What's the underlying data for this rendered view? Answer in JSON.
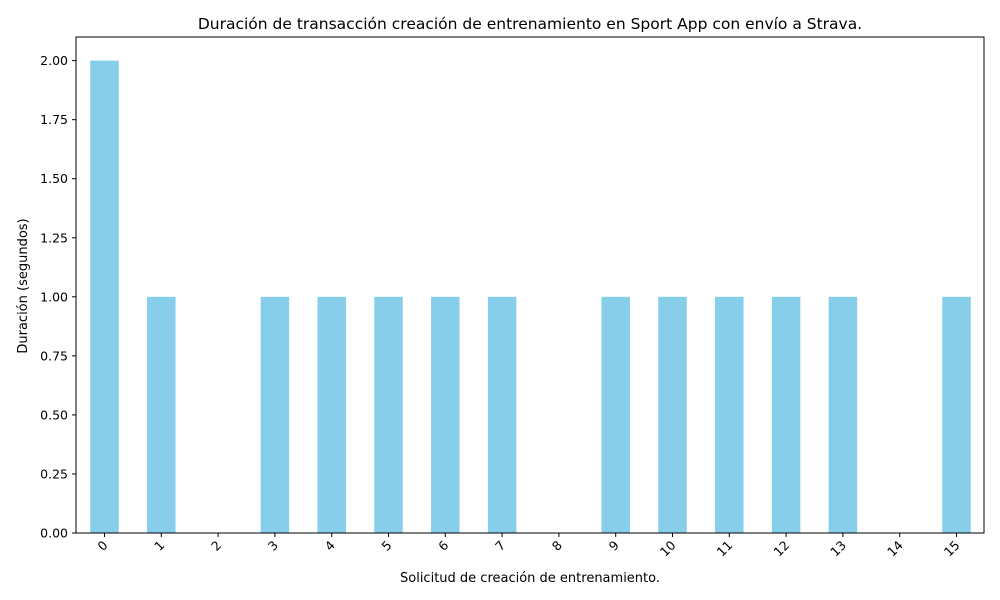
{
  "chart_data": {
    "type": "bar",
    "title": "Duración de transacción creación de entrenamiento en Sport App con envío a Strava.",
    "xlabel": "Solicitud de creación de entrenamiento.",
    "ylabel": "Duración (segundos)",
    "categories": [
      "0",
      "1",
      "2",
      "3",
      "4",
      "5",
      "6",
      "7",
      "8",
      "9",
      "10",
      "11",
      "12",
      "13",
      "14",
      "15"
    ],
    "values": [
      2,
      1,
      0,
      1,
      1,
      1,
      1,
      1,
      0,
      1,
      1,
      1,
      1,
      1,
      0,
      1
    ],
    "ylim": [
      0,
      2.1
    ],
    "yticks": [
      "0.00",
      "0.25",
      "0.50",
      "0.75",
      "1.00",
      "1.25",
      "1.50",
      "1.75",
      "2.00"
    ],
    "bar_color": "#87ceeb",
    "grid": false,
    "legend": false
  }
}
